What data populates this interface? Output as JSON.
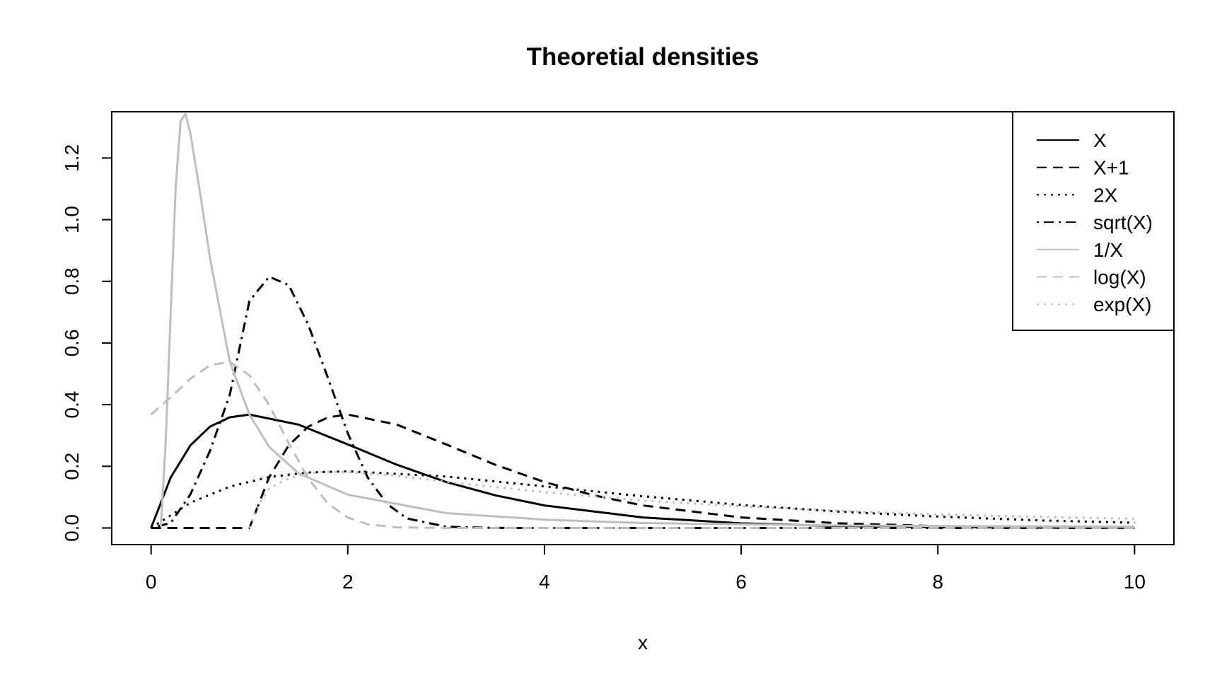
{
  "chart_data": {
    "type": "line",
    "title": "Theoretial densities",
    "xlabel": "x",
    "ylabel": "",
    "xlim": [
      -0.4,
      10.4
    ],
    "ylim": [
      -0.054,
      1.35
    ],
    "x_ticks": [
      "0",
      "2",
      "4",
      "6",
      "8",
      "10"
    ],
    "x_tick_values": [
      0,
      2,
      4,
      6,
      8,
      10
    ],
    "y_ticks": [
      "0.0",
      "0.2",
      "0.4",
      "0.6",
      "0.8",
      "1.0",
      "1.2"
    ],
    "y_tick_values": [
      0,
      0.2,
      0.4,
      0.6,
      0.8,
      1.0,
      1.2
    ],
    "grid": false,
    "legend_position": "top-right",
    "series": [
      {
        "name": "X",
        "color": "#000000",
        "style": "solid",
        "width": 3,
        "x": [
          0,
          0.2,
          0.4,
          0.6,
          0.8,
          1.0,
          1.5,
          2.0,
          2.5,
          3.0,
          3.5,
          4.0,
          5.0,
          6.0,
          7.0,
          8.0,
          9.0,
          10.0
        ],
        "y": [
          0,
          0.164,
          0.268,
          0.329,
          0.359,
          0.368,
          0.335,
          0.271,
          0.205,
          0.149,
          0.106,
          0.073,
          0.034,
          0.015,
          0.006,
          0.003,
          0.001,
          0.0005
        ]
      },
      {
        "name": "X+1",
        "color": "#000000",
        "style": "dashed",
        "width": 3,
        "x": [
          0,
          1.0,
          1.2,
          1.4,
          1.6,
          1.8,
          2.0,
          2.5,
          3.0,
          3.5,
          4.0,
          4.5,
          5.0,
          6.0,
          7.0,
          8.0,
          9.0,
          10.0
        ],
        "y": [
          0,
          0,
          0.164,
          0.268,
          0.329,
          0.359,
          0.368,
          0.335,
          0.271,
          0.205,
          0.149,
          0.106,
          0.073,
          0.034,
          0.015,
          0.006,
          0.003,
          0.001
        ]
      },
      {
        "name": "2X",
        "color": "#000000",
        "style": "dotted",
        "width": 3,
        "x": [
          0,
          0.4,
          0.8,
          1.2,
          1.6,
          2.0,
          3.0,
          4.0,
          5.0,
          6.0,
          7.0,
          8.0,
          9.0,
          10.0
        ],
        "y": [
          0,
          0.082,
          0.134,
          0.165,
          0.18,
          0.184,
          0.167,
          0.135,
          0.103,
          0.075,
          0.053,
          0.037,
          0.025,
          0.017
        ]
      },
      {
        "name": "sqrt(X)",
        "color": "#000000",
        "style": "dashdot",
        "width": 3,
        "x": [
          0,
          0.2,
          0.4,
          0.6,
          0.8,
          1.0,
          1.2,
          1.4,
          1.6,
          1.8,
          2.0,
          2.2,
          2.4,
          2.6,
          3.0,
          3.5,
          4.0,
          10.0
        ],
        "y": [
          0,
          0.016,
          0.109,
          0.251,
          0.432,
          0.736,
          0.815,
          0.788,
          0.658,
          0.485,
          0.307,
          0.165,
          0.078,
          0.031,
          0.004,
          0.0002,
          0,
          0
        ]
      },
      {
        "name": "1/X",
        "color": "#bebebe",
        "style": "solid",
        "width": 3,
        "x": [
          0.1,
          0.15,
          0.2,
          0.25,
          0.3,
          0.35,
          0.4,
          0.5,
          0.6,
          0.8,
          1.0,
          1.2,
          1.5,
          2.0,
          3.0,
          4.0,
          5.0,
          7.0,
          10.0
        ],
        "y": [
          0.004,
          0.289,
          0.7,
          1.103,
          1.321,
          1.343,
          1.279,
          1.083,
          0.874,
          0.54,
          0.368,
          0.263,
          0.177,
          0.108,
          0.048,
          0.027,
          0.016,
          0.008,
          0.004
        ]
      },
      {
        "name": "log(X)",
        "color": "#bebebe",
        "style": "dashed",
        "width": 3,
        "x": [
          0,
          0.2,
          0.4,
          0.6,
          0.8,
          1.0,
          1.2,
          1.4,
          1.6,
          1.8,
          2.0,
          2.2,
          2.5,
          3.0,
          3.5,
          10.0
        ],
        "y": [
          0.368,
          0.424,
          0.484,
          0.528,
          0.539,
          0.495,
          0.399,
          0.275,
          0.16,
          0.078,
          0.034,
          0.012,
          0.002,
          0,
          0,
          0
        ]
      },
      {
        "name": "exp(X)",
        "color": "#bebebe",
        "style": "dotted",
        "width": 3,
        "x": [
          1.0,
          1.1,
          1.2,
          1.4,
          1.6,
          1.8,
          2.0,
          2.5,
          3.0,
          4.0,
          5.0,
          6.0,
          7.0,
          8.0,
          9.0,
          10.0
        ],
        "y": [
          0,
          0.079,
          0.128,
          0.161,
          0.178,
          0.182,
          0.181,
          0.169,
          0.15,
          0.116,
          0.089,
          0.07,
          0.055,
          0.044,
          0.036,
          0.03
        ]
      }
    ]
  }
}
